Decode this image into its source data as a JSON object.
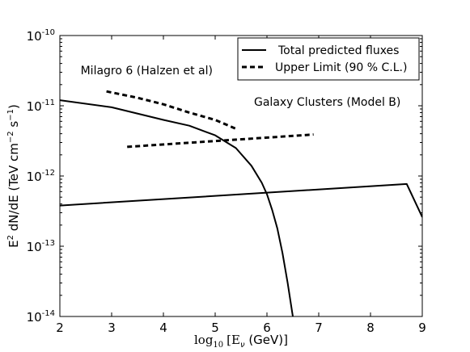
{
  "chart_data": {
    "type": "line",
    "title": "",
    "xlabel_main": "log",
    "xlabel_sub": "10",
    "xlabel_var": "[E",
    "xlabel_var_sub": "ν",
    "xlabel_rest": " (GeV)]",
    "ylabel": "E² dN/dE (TeV cm⁻² s⁻¹)",
    "ylabel_parts": {
      "e": "E",
      "e_sup": "2",
      "mid": " dN/dE (TeV cm",
      "cm_sup": "−2",
      "s": " s",
      "s_sup": "−1",
      "end": ")"
    },
    "xlim": [
      2,
      9
    ],
    "ylim": [
      1e-14,
      1e-10
    ],
    "yscale": "log",
    "x_ticks": [
      "2",
      "3",
      "4",
      "5",
      "6",
      "7",
      "8",
      "9"
    ],
    "y_ticks": [
      {
        "base": "10",
        "exp": "-10"
      },
      {
        "base": "10",
        "exp": "-11"
      },
      {
        "base": "10",
        "exp": "-12"
      },
      {
        "base": "10",
        "exp": "-13"
      },
      {
        "base": "10",
        "exp": "-14"
      }
    ],
    "legend": {
      "placement": "top-right",
      "entries": [
        {
          "label": "Total predicted fluxes",
          "style": "solid"
        },
        {
          "label": "Upper Limit (90 % C.L.)",
          "style": "dashed"
        }
      ]
    },
    "annotations": [
      {
        "text": "Milagro 6 (Halzen et al)",
        "x": 2.4,
        "y": 2.8e-11
      },
      {
        "text": "Galaxy Clusters (Model B)",
        "x": 5.75,
        "y": 1e-11
      }
    ],
    "series": [
      {
        "style": "solid",
        "points": [
          [
            2.0,
            1.2e-11
          ],
          [
            3.0,
            9.5e-12
          ],
          [
            4.0,
            6.3e-12
          ],
          [
            4.5,
            5.2e-12
          ],
          [
            5.0,
            3.8e-12
          ],
          [
            5.4,
            2.5e-12
          ],
          [
            5.7,
            1.4e-12
          ],
          [
            5.9,
            8e-13
          ],
          [
            6.0,
            5.5e-13
          ],
          [
            6.1,
            3.3e-13
          ],
          [
            6.2,
            1.8e-13
          ],
          [
            6.3,
            8e-14
          ],
          [
            6.4,
            3e-14
          ],
          [
            6.5,
            1e-14
          ]
        ]
      },
      {
        "style": "solid",
        "points": [
          [
            2.0,
            3.8e-13
          ],
          [
            8.7,
            7.7e-13
          ],
          [
            9.0,
            2.6e-13
          ]
        ]
      },
      {
        "style": "dashed",
        "points": [
          [
            2.9,
            1.6e-11
          ],
          [
            3.5,
            1.3e-11
          ],
          [
            4.0,
            1.05e-11
          ],
          [
            4.5,
            8e-12
          ],
          [
            5.0,
            6.3e-12
          ],
          [
            5.4,
            4.7e-12
          ]
        ]
      },
      {
        "style": "dashed",
        "points": [
          [
            3.3,
            2.6e-12
          ],
          [
            6.9,
            3.9e-12
          ]
        ]
      }
    ]
  }
}
